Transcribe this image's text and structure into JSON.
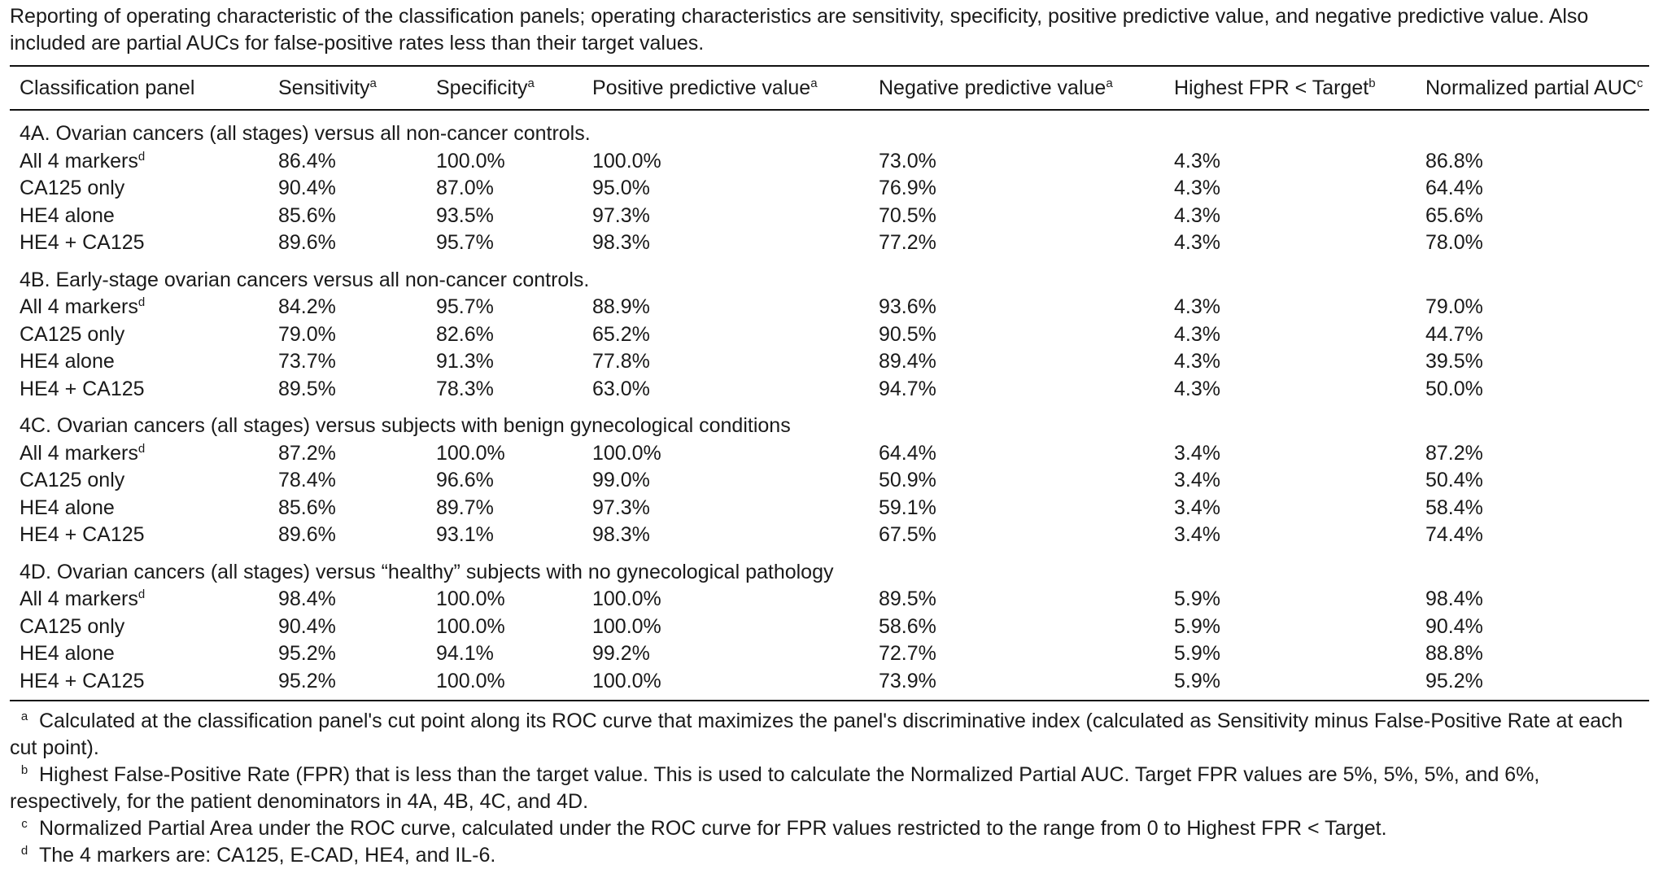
{
  "caption": "Reporting of operating characteristic of the classification panels; operating characteristics are sensitivity, specificity, positive predictive value, and negative predictive value. Also included are partial AUCs for false-positive rates less than their target values.",
  "headers": [
    {
      "label": "Classification panel",
      "sup": ""
    },
    {
      "label": "Sensitivity",
      "sup": "a"
    },
    {
      "label": "Specificity",
      "sup": "a"
    },
    {
      "label": "Positive predictive value",
      "sup": "a"
    },
    {
      "label": "Negative predictive value",
      "sup": "a"
    },
    {
      "label": "Highest FPR < Target",
      "sup": "b"
    },
    {
      "label": "Normalized partial AUC",
      "sup": "c"
    }
  ],
  "sections": [
    {
      "title": "4A. Ovarian cancers (all stages) versus all non-cancer controls.",
      "rows": [
        {
          "panel": "All 4 markers",
          "sup": "d",
          "values": [
            "86.4%",
            "100.0%",
            "100.0%",
            "73.0%",
            "4.3%",
            "86.8%"
          ]
        },
        {
          "panel": "CA125 only",
          "sup": "",
          "values": [
            "90.4%",
            "87.0%",
            "95.0%",
            "76.9%",
            "4.3%",
            "64.4%"
          ]
        },
        {
          "panel": "HE4 alone",
          "sup": "",
          "values": [
            "85.6%",
            "93.5%",
            "97.3%",
            "70.5%",
            "4.3%",
            "65.6%"
          ]
        },
        {
          "panel": "HE4 + CA125",
          "sup": "",
          "values": [
            "89.6%",
            "95.7%",
            "98.3%",
            "77.2%",
            "4.3%",
            "78.0%"
          ]
        }
      ]
    },
    {
      "title": "4B. Early-stage ovarian cancers versus all non-cancer controls.",
      "rows": [
        {
          "panel": "All 4 markers",
          "sup": "d",
          "values": [
            "84.2%",
            "95.7%",
            "88.9%",
            "93.6%",
            "4.3%",
            "79.0%"
          ]
        },
        {
          "panel": "CA125 only",
          "sup": "",
          "values": [
            "79.0%",
            "82.6%",
            "65.2%",
            "90.5%",
            "4.3%",
            "44.7%"
          ]
        },
        {
          "panel": "HE4 alone",
          "sup": "",
          "values": [
            "73.7%",
            "91.3%",
            "77.8%",
            "89.4%",
            "4.3%",
            "39.5%"
          ]
        },
        {
          "panel": "HE4 + CA125",
          "sup": "",
          "values": [
            "89.5%",
            "78.3%",
            "63.0%",
            "94.7%",
            "4.3%",
            "50.0%"
          ]
        }
      ]
    },
    {
      "title": "4C. Ovarian cancers (all stages) versus subjects with benign gynecological conditions",
      "rows": [
        {
          "panel": "All 4 markers",
          "sup": "d",
          "values": [
            "87.2%",
            "100.0%",
            "100.0%",
            "64.4%",
            "3.4%",
            "87.2%"
          ]
        },
        {
          "panel": "CA125 only",
          "sup": "",
          "values": [
            "78.4%",
            "96.6%",
            "99.0%",
            "50.9%",
            "3.4%",
            "50.4%"
          ]
        },
        {
          "panel": "HE4 alone",
          "sup": "",
          "values": [
            "85.6%",
            "89.7%",
            "97.3%",
            "59.1%",
            "3.4%",
            "58.4%"
          ]
        },
        {
          "panel": "HE4 + CA125",
          "sup": "",
          "values": [
            "89.6%",
            "93.1%",
            "98.3%",
            "67.5%",
            "3.4%",
            "74.4%"
          ]
        }
      ]
    },
    {
      "title": "4D. Ovarian cancers (all stages) versus “healthy” subjects with no gynecological pathology",
      "rows": [
        {
          "panel": "All 4 markers",
          "sup": "d",
          "values": [
            "98.4%",
            "100.0%",
            "100.0%",
            "89.5%",
            "5.9%",
            "98.4%"
          ]
        },
        {
          "panel": "CA125 only",
          "sup": "",
          "values": [
            "90.4%",
            "100.0%",
            "100.0%",
            "58.6%",
            "5.9%",
            "90.4%"
          ]
        },
        {
          "panel": "HE4 alone",
          "sup": "",
          "values": [
            "95.2%",
            "94.1%",
            "99.2%",
            "72.7%",
            "5.9%",
            "88.8%"
          ]
        },
        {
          "panel": "HE4 + CA125",
          "sup": "",
          "values": [
            "95.2%",
            "100.0%",
            "100.0%",
            "73.9%",
            "5.9%",
            "95.2%"
          ]
        }
      ]
    }
  ],
  "footnotes": [
    {
      "mark": "a",
      "text": "Calculated at the classification panel's cut point along its ROC curve that maximizes the panel's discriminative index (calculated as Sensitivity minus False-Positive Rate at each cut point)."
    },
    {
      "mark": "b",
      "text": "Highest False-Positive Rate (FPR) that is less than the target value. This is used to calculate the Normalized Partial AUC. Target FPR values are 5%, 5%, 5%, and 6%, respectively, for the patient denominators in 4A, 4B, 4C, and 4D."
    },
    {
      "mark": "c",
      "text": "Normalized Partial Area under the ROC curve, calculated under the ROC curve for FPR values restricted to the range from 0 to Highest FPR < Target."
    },
    {
      "mark": "d",
      "text": "The 4 markers are: CA125, E-CAD, HE4, and IL-6."
    }
  ]
}
